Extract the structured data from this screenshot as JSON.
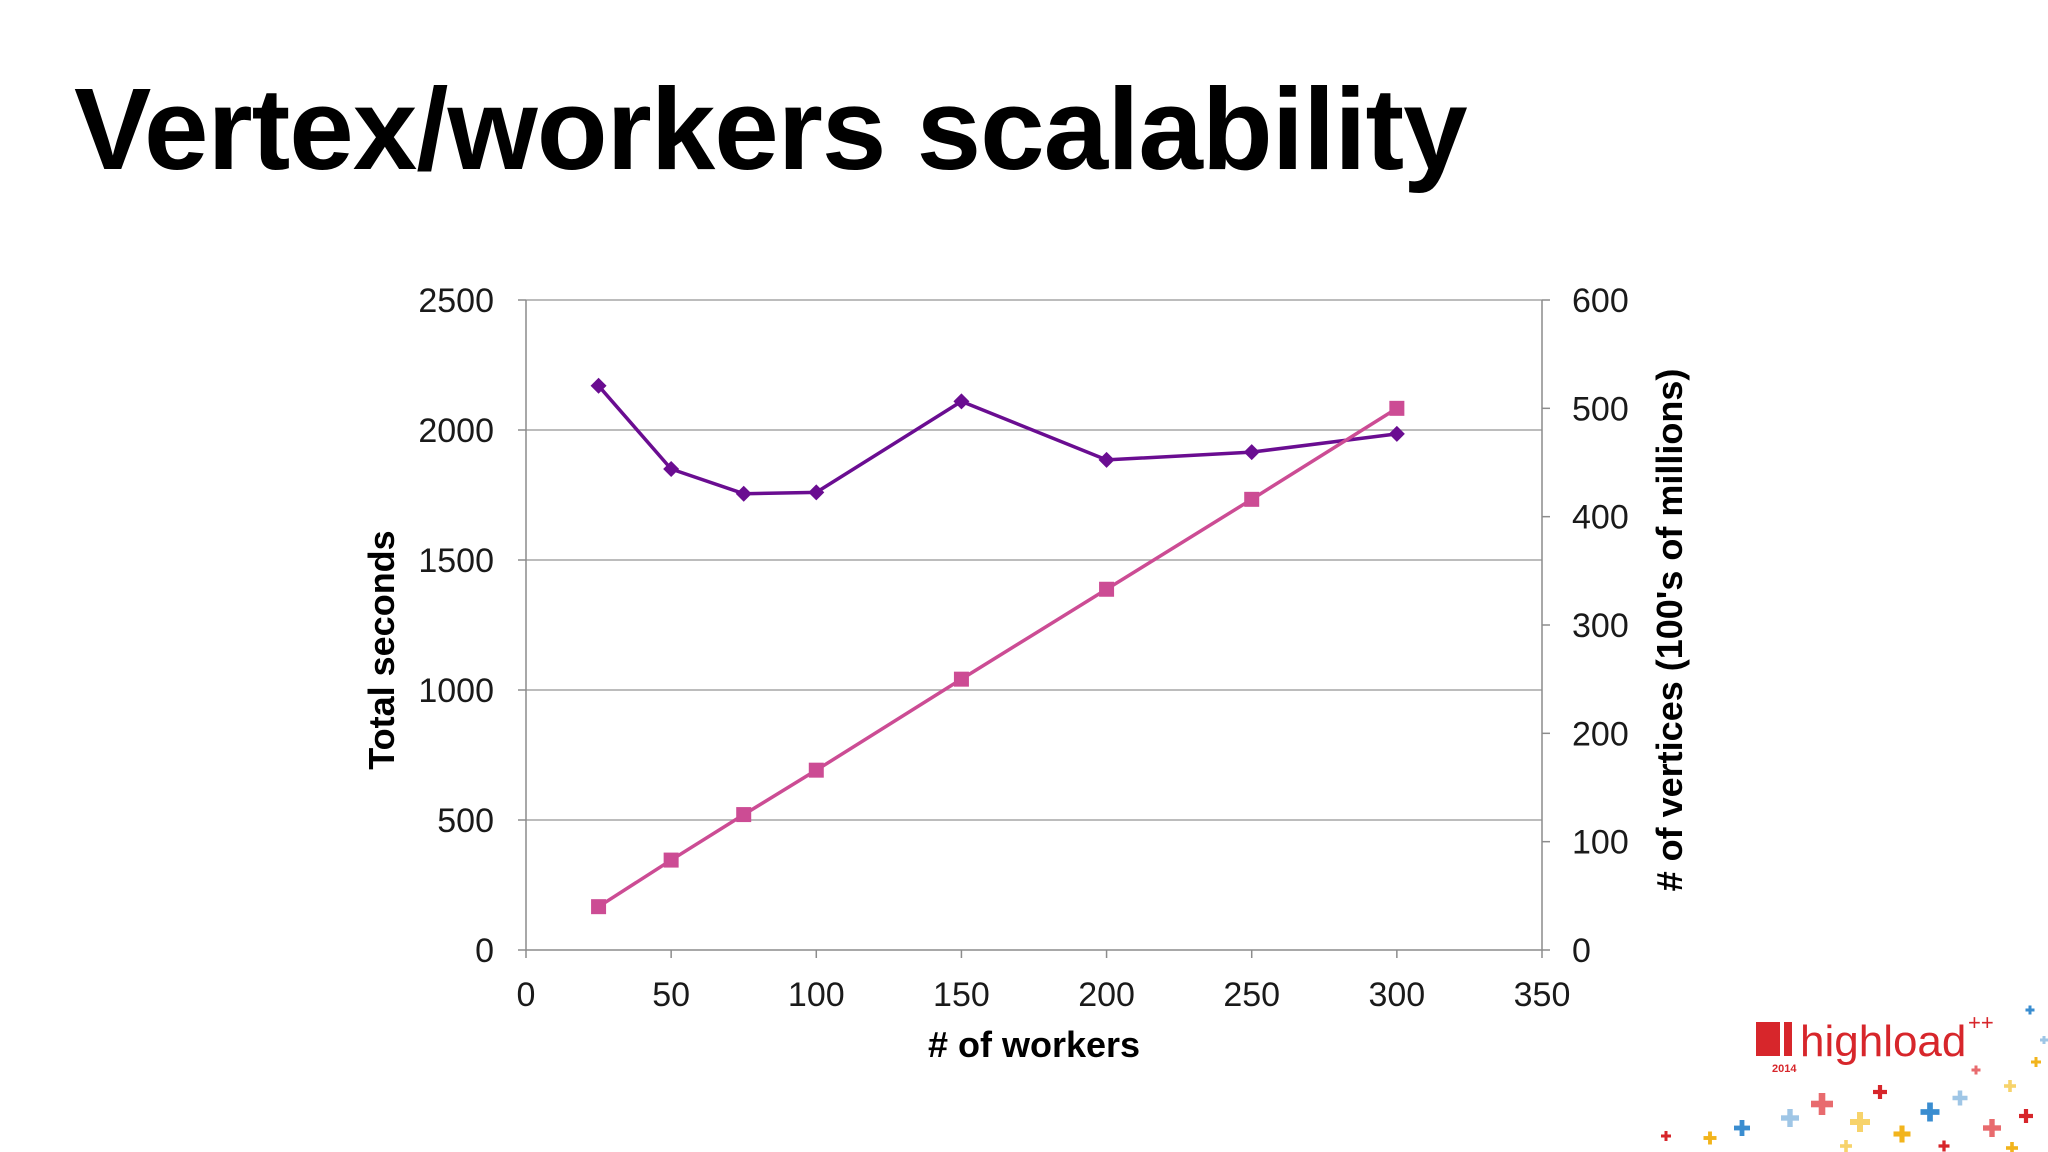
{
  "slide": {
    "title": "Vertex/workers scalability"
  },
  "chart_data": {
    "type": "line",
    "xlabel": "# of workers",
    "ylabel": "Total seconds",
    "y2label": "# of vertices (100's of millions)",
    "xlim": [
      0,
      350
    ],
    "ylim": [
      0,
      2500
    ],
    "y2lim": [
      0,
      600
    ],
    "x_ticks": [
      0,
      50,
      100,
      150,
      200,
      250,
      300,
      350
    ],
    "y_ticks": [
      0,
      500,
      1000,
      1500,
      2000,
      2500
    ],
    "y2_ticks": [
      0,
      100,
      200,
      300,
      400,
      500,
      600
    ],
    "grid": true,
    "legend": "none",
    "x": [
      25,
      50,
      75,
      100,
      150,
      200,
      250,
      300
    ],
    "series": [
      {
        "axis": "left",
        "marker": "diamond",
        "color": "#6a0d91",
        "values": [
          2170,
          1850,
          1755,
          1760,
          2110,
          1885,
          1915,
          1985
        ]
      },
      {
        "axis": "right",
        "marker": "square",
        "color": "#cc4c94",
        "values": [
          40,
          83,
          125,
          166,
          250,
          333,
          416,
          500
        ]
      }
    ]
  },
  "logo": {
    "text": "highload",
    "superscript": "++",
    "year": "2014",
    "brand_color": "#d7262b"
  }
}
